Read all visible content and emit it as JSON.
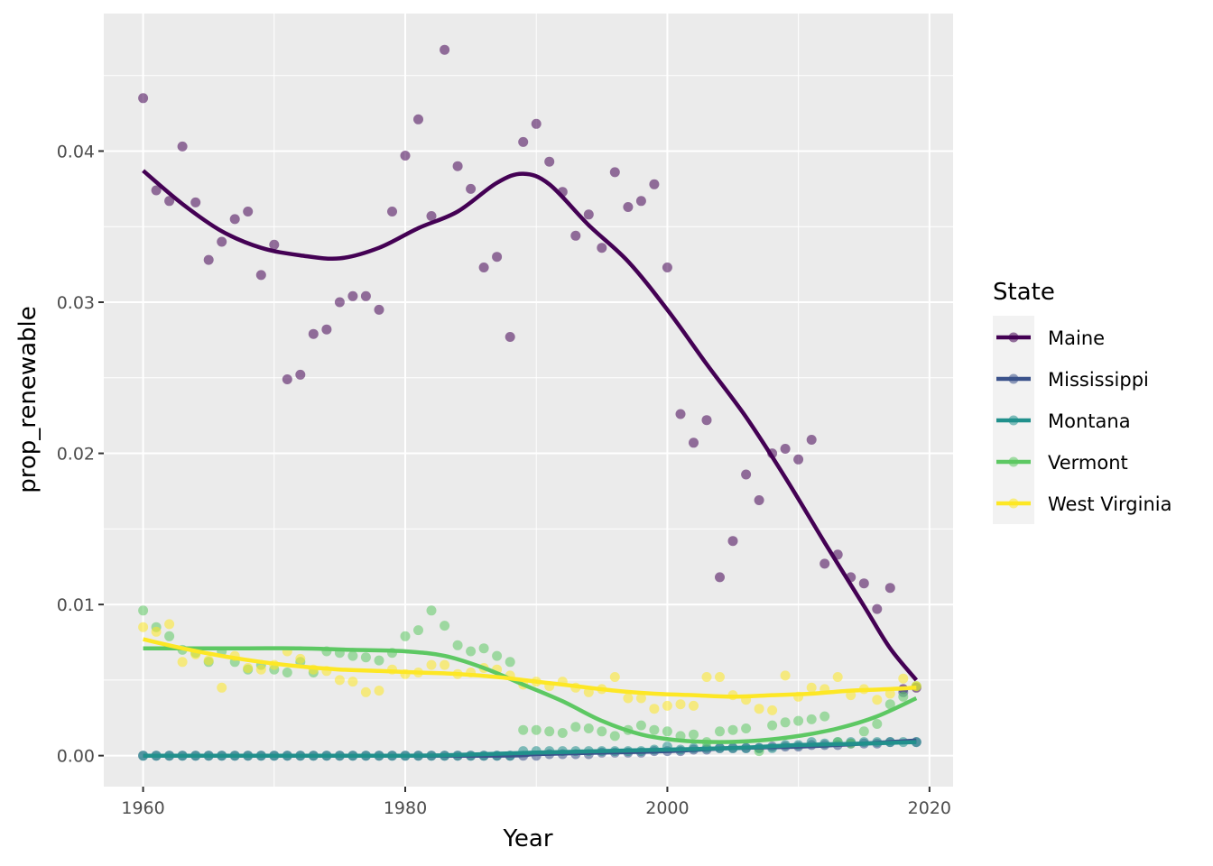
{
  "chart_data": {
    "type": "scatter",
    "xlabel": "Year",
    "ylabel": "prop_renewable",
    "xlim": [
      1957.0,
      2021.8
    ],
    "ylim": [
      -0.00205,
      0.0491
    ],
    "x_ticks": [
      1960,
      1980,
      2000,
      2020
    ],
    "x_tick_labels": [
      "1960",
      "1980",
      "2000",
      "2020"
    ],
    "y_ticks": [
      0,
      0.01,
      0.02,
      0.03,
      0.04
    ],
    "y_tick_labels": [
      "0.00",
      "0.01",
      "0.02",
      "0.03",
      "0.04"
    ],
    "grid": true,
    "panel_background": "#ebebeb",
    "legend": {
      "title": "State",
      "placement": "right"
    },
    "series": [
      {
        "name": "Maine",
        "color": "#440154",
        "x": [
          1960,
          1961,
          1962,
          1963,
          1964,
          1965,
          1966,
          1967,
          1968,
          1969,
          1970,
          1971,
          1972,
          1973,
          1974,
          1975,
          1976,
          1977,
          1978,
          1979,
          1980,
          1981,
          1982,
          1983,
          1984,
          1985,
          1986,
          1987,
          1988,
          1989,
          1990,
          1991,
          1992,
          1993,
          1994,
          1995,
          1996,
          1997,
          1998,
          1999,
          2000,
          2001,
          2002,
          2003,
          2004,
          2005,
          2006,
          2007,
          2008,
          2009,
          2010,
          2011,
          2012,
          2013,
          2014,
          2015,
          2016,
          2017,
          2018,
          2019
        ],
        "y": [
          0.0435,
          0.0374,
          0.0367,
          0.0403,
          0.0366,
          0.0328,
          0.034,
          0.0355,
          0.036,
          0.0318,
          0.0338,
          0.0249,
          0.0252,
          0.0279,
          0.0282,
          0.03,
          0.0304,
          0.0304,
          0.0295,
          0.036,
          0.0397,
          0.0421,
          0.0357,
          0.0467,
          0.039,
          0.0375,
          0.0323,
          0.033,
          0.0277,
          0.0406,
          0.0418,
          0.0393,
          0.0373,
          0.0344,
          0.0358,
          0.0336,
          0.0386,
          0.0363,
          0.0367,
          0.0378,
          0.0323,
          0.0226,
          0.0207,
          0.0222,
          0.0118,
          0.0142,
          0.0186,
          0.0169,
          0.02,
          0.0203,
          0.0196,
          0.0209,
          0.0127,
          0.0133,
          0.0118,
          0.0114,
          0.0097,
          0.0111,
          0.0044,
          0.0045
        ],
        "smooth": [
          [
            1960,
            0.0387
          ],
          [
            1963,
            0.0365
          ],
          [
            1966,
            0.0347
          ],
          [
            1969,
            0.0336
          ],
          [
            1972,
            0.0331
          ],
          [
            1975,
            0.0329
          ],
          [
            1978,
            0.0336
          ],
          [
            1981,
            0.0349
          ],
          [
            1984,
            0.036
          ],
          [
            1987,
            0.0379
          ],
          [
            1989,
            0.0385
          ],
          [
            1991,
            0.0378
          ],
          [
            1994,
            0.0351
          ],
          [
            1997,
            0.0327
          ],
          [
            2000,
            0.0295
          ],
          [
            2003,
            0.0259
          ],
          [
            2006,
            0.0224
          ],
          [
            2009,
            0.0184
          ],
          [
            2012,
            0.0141
          ],
          [
            2015,
            0.0099
          ],
          [
            2017,
            0.0071
          ],
          [
            2019,
            0.005
          ]
        ]
      },
      {
        "name": "Mississippi",
        "color": "#3b528b",
        "x": [
          1960,
          1961,
          1962,
          1963,
          1964,
          1965,
          1966,
          1967,
          1968,
          1969,
          1970,
          1971,
          1972,
          1973,
          1974,
          1975,
          1976,
          1977,
          1978,
          1979,
          1980,
          1981,
          1982,
          1983,
          1984,
          1985,
          1986,
          1987,
          1988,
          1989,
          1990,
          1991,
          1992,
          1993,
          1994,
          1995,
          1996,
          1997,
          1998,
          1999,
          2000,
          2001,
          2002,
          2003,
          2004,
          2005,
          2006,
          2007,
          2008,
          2009,
          2010,
          2011,
          2012,
          2013,
          2014,
          2015,
          2016,
          2017,
          2018,
          2019
        ],
        "y": [
          0,
          0,
          0,
          0,
          0,
          0,
          0,
          0,
          0,
          0,
          0,
          0,
          0,
          0,
          0,
          0,
          0,
          0,
          0,
          0,
          0,
          0,
          0,
          0,
          0,
          0,
          0,
          0,
          0,
          0,
          0,
          0.0001,
          0.0001,
          0.0001,
          0.0001,
          0.0002,
          0.0002,
          0.0002,
          0.0002,
          0.0003,
          0.0003,
          0.0003,
          0.0004,
          0.0004,
          0.0005,
          0.0005,
          0.0005,
          0.0005,
          0.0006,
          0.0006,
          0.0006,
          0.0007,
          0.0007,
          0.0007,
          0.0008,
          0.0008,
          0.0008,
          0.0009,
          0.0042,
          0.0009
        ],
        "smooth": [
          [
            1960,
            0
          ],
          [
            1986,
            0
          ],
          [
            1990,
            0.0001
          ],
          [
            1995,
            0.0002
          ],
          [
            2000,
            0.0003
          ],
          [
            2005,
            0.0005
          ],
          [
            2010,
            0.0006
          ],
          [
            2015,
            0.0008
          ],
          [
            2019,
            0.001
          ]
        ]
      },
      {
        "name": "Montana",
        "color": "#21908c",
        "x": [
          1960,
          1961,
          1962,
          1963,
          1964,
          1965,
          1966,
          1967,
          1968,
          1969,
          1970,
          1971,
          1972,
          1973,
          1974,
          1975,
          1976,
          1977,
          1978,
          1979,
          1980,
          1981,
          1982,
          1983,
          1984,
          1985,
          1986,
          1987,
          1988,
          1989,
          1990,
          1991,
          1992,
          1993,
          1994,
          1995,
          1996,
          1997,
          1998,
          1999,
          2000,
          2001,
          2002,
          2003,
          2004,
          2005,
          2006,
          2007,
          2008,
          2009,
          2010,
          2011,
          2012,
          2013,
          2014,
          2015,
          2016,
          2017,
          2018,
          2019
        ],
        "y": [
          0,
          0,
          0,
          0,
          0,
          0,
          0,
          0,
          0,
          0,
          0,
          0,
          0,
          0,
          0,
          0,
          0,
          0,
          0,
          0,
          0,
          0,
          0,
          0,
          0,
          0,
          0,
          0,
          0,
          0.0003,
          0.0003,
          0.0003,
          0.0003,
          0.0003,
          0.0003,
          0.0003,
          0.0003,
          0.0003,
          0.0003,
          0.0004,
          0.0006,
          0.0004,
          0.0005,
          0.0005,
          0.0005,
          0.0005,
          0.0005,
          0.0005,
          0.0005,
          0.0007,
          0.0007,
          0.0009,
          0.0008,
          0.0009,
          0.0009,
          0.0009,
          0.0009,
          0.0009,
          0.0009,
          0.0009
        ],
        "smooth": [
          [
            1960,
            0
          ],
          [
            1980,
            0
          ],
          [
            1986,
            0.0001
          ],
          [
            1990,
            0.0002
          ],
          [
            1995,
            0.0003
          ],
          [
            2000,
            0.0004
          ],
          [
            2005,
            0.0005
          ],
          [
            2010,
            0.0007
          ],
          [
            2015,
            0.0008
          ],
          [
            2019,
            0.0009
          ]
        ]
      },
      {
        "name": "Vermont",
        "color": "#5dc863",
        "x": [
          1960,
          1961,
          1962,
          1963,
          1964,
          1965,
          1966,
          1967,
          1968,
          1969,
          1970,
          1971,
          1972,
          1973,
          1974,
          1975,
          1976,
          1977,
          1978,
          1979,
          1980,
          1981,
          1982,
          1983,
          1984,
          1985,
          1986,
          1987,
          1988,
          1989,
          1990,
          1991,
          1992,
          1993,
          1994,
          1995,
          1996,
          1997,
          1998,
          1999,
          2000,
          2001,
          2002,
          2003,
          2004,
          2005,
          2006,
          2007,
          2008,
          2009,
          2010,
          2011,
          2012,
          2013,
          2014,
          2015,
          2016,
          2017,
          2018,
          2019
        ],
        "y": [
          0.0096,
          0.0085,
          0.0079,
          0.007,
          0.0068,
          0.0062,
          0.0069,
          0.0062,
          0.0057,
          0.006,
          0.0057,
          0.0055,
          0.0062,
          0.0055,
          0.0069,
          0.0068,
          0.0066,
          0.0065,
          0.0063,
          0.0068,
          0.0079,
          0.0083,
          0.0096,
          0.0086,
          0.0073,
          0.0069,
          0.0071,
          0.0066,
          0.0062,
          0.0017,
          0.0017,
          0.0016,
          0.0015,
          0.0019,
          0.0018,
          0.0016,
          0.0013,
          0.0017,
          0.002,
          0.0017,
          0.0016,
          0.0013,
          0.0014,
          0.0009,
          0.0016,
          0.0017,
          0.0018,
          0.0003,
          0.002,
          0.0022,
          0.0023,
          0.0024,
          0.0026,
          0.0009,
          0.0008,
          0.0016,
          0.0021,
          0.0034,
          0.0039,
          0.0046
        ],
        "smooth": [
          [
            1960,
            0.0071
          ],
          [
            1964,
            0.0071
          ],
          [
            1968,
            0.0071
          ],
          [
            1972,
            0.0071
          ],
          [
            1976,
            0.007
          ],
          [
            1980,
            0.0069
          ],
          [
            1983,
            0.0066
          ],
          [
            1986,
            0.0058
          ],
          [
            1989,
            0.0047
          ],
          [
            1992,
            0.0036
          ],
          [
            1995,
            0.0023
          ],
          [
            1998,
            0.0014
          ],
          [
            2001,
            0.001
          ],
          [
            2004,
            0.0009
          ],
          [
            2007,
            0.001
          ],
          [
            2010,
            0.0013
          ],
          [
            2013,
            0.0018
          ],
          [
            2016,
            0.0026
          ],
          [
            2019,
            0.0038
          ]
        ]
      },
      {
        "name": "West Virginia",
        "color": "#fde725",
        "x": [
          1960,
          1961,
          1962,
          1963,
          1964,
          1965,
          1966,
          1967,
          1968,
          1969,
          1970,
          1971,
          1972,
          1973,
          1974,
          1975,
          1976,
          1977,
          1978,
          1979,
          1980,
          1981,
          1982,
          1983,
          1984,
          1985,
          1986,
          1987,
          1988,
          1989,
          1990,
          1991,
          1992,
          1993,
          1994,
          1995,
          1996,
          1997,
          1998,
          1999,
          2000,
          2001,
          2002,
          2003,
          2004,
          2005,
          2006,
          2007,
          2008,
          2009,
          2010,
          2011,
          2012,
          2013,
          2014,
          2015,
          2016,
          2017,
          2018,
          2019
        ],
        "y": [
          0.0085,
          0.0082,
          0.0087,
          0.0062,
          0.0067,
          0.0063,
          0.0045,
          0.0066,
          0.0058,
          0.0057,
          0.006,
          0.0069,
          0.0064,
          0.0057,
          0.0056,
          0.005,
          0.0049,
          0.0042,
          0.0043,
          0.0057,
          0.0054,
          0.0055,
          0.006,
          0.006,
          0.0054,
          0.0055,
          0.0058,
          0.0057,
          0.0053,
          0.0047,
          0.0049,
          0.0046,
          0.0049,
          0.0045,
          0.0042,
          0.0044,
          0.0052,
          0.0038,
          0.0038,
          0.0031,
          0.0033,
          0.0034,
          0.0033,
          0.0052,
          0.0052,
          0.004,
          0.0037,
          0.0031,
          0.003,
          0.0053,
          0.0039,
          0.0045,
          0.0044,
          0.0052,
          0.004,
          0.0044,
          0.0037,
          0.0041,
          0.0051,
          0.0046
        ],
        "smooth": [
          [
            1960,
            0.0077
          ],
          [
            1963,
            0.0071
          ],
          [
            1966,
            0.0066
          ],
          [
            1969,
            0.0062
          ],
          [
            1972,
            0.0059
          ],
          [
            1975,
            0.0057
          ],
          [
            1978,
            0.0056
          ],
          [
            1981,
            0.0055
          ],
          [
            1984,
            0.0054
          ],
          [
            1987,
            0.0052
          ],
          [
            1990,
            0.0049
          ],
          [
            1993,
            0.0046
          ],
          [
            1996,
            0.0043
          ],
          [
            1999,
            0.0041
          ],
          [
            2002,
            0.004
          ],
          [
            2005,
            0.0039
          ],
          [
            2008,
            0.004
          ],
          [
            2011,
            0.0041
          ],
          [
            2014,
            0.0043
          ],
          [
            2017,
            0.0044
          ],
          [
            2019,
            0.0045
          ]
        ]
      }
    ]
  }
}
